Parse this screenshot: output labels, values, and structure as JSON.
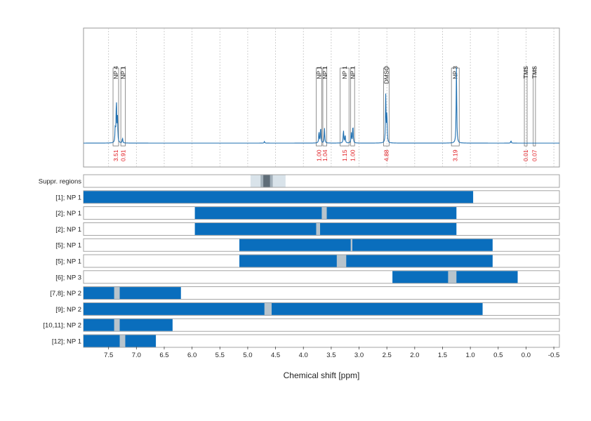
{
  "chart_data": {
    "type": "nmr-spectrum-with-region-bars",
    "xlabel": "Chemical shift [ppm]",
    "xlim": [
      7.95,
      -0.6
    ],
    "x_reversed": true,
    "x_ticks": [
      7.5,
      7.0,
      6.5,
      6.0,
      5.5,
      5.0,
      4.5,
      4.0,
      3.5,
      3.0,
      2.5,
      2.0,
      1.5,
      1.0,
      0.5,
      0.0,
      -0.5
    ],
    "x_tick_labels": [
      "7.5",
      "7.0",
      "6.5",
      "6.0",
      "5.5",
      "5.0",
      "4.5",
      "4.0",
      "3.5",
      "3.0",
      "2.5",
      "2.0",
      "1.5",
      "1.0",
      "0.5",
      "0.0",
      "-0.5"
    ],
    "grid": "vertical dotted",
    "spectrum": {
      "color": "#1f6fb0",
      "baseline_ppm_range": [
        7.95,
        -0.6
      ],
      "peaks": [
        {
          "ppm": 7.36,
          "height": 0.52
        },
        {
          "ppm": 7.34,
          "height": 0.3
        },
        {
          "ppm": 7.38,
          "height": 0.18
        },
        {
          "ppm": 7.25,
          "height": 0.06
        },
        {
          "ppm": 3.72,
          "height": 0.14
        },
        {
          "ppm": 3.69,
          "height": 0.2
        },
        {
          "ppm": 3.62,
          "height": 0.18
        },
        {
          "ppm": 3.28,
          "height": 0.16
        },
        {
          "ppm": 3.25,
          "height": 0.1
        },
        {
          "ppm": 3.14,
          "height": 0.14
        },
        {
          "ppm": 3.11,
          "height": 0.22
        },
        {
          "ppm": 2.52,
          "height": 0.58
        },
        {
          "ppm": 2.5,
          "height": 0.36
        },
        {
          "ppm": 1.25,
          "height": 0.92
        },
        {
          "ppm": 4.7,
          "height": 0.02
        },
        {
          "ppm": 0.27,
          "height": 0.03
        }
      ]
    },
    "integration_regions": [
      {
        "label": "NP 4",
        "from": 7.42,
        "to": 7.32,
        "integral": "3.51"
      },
      {
        "label": "NP 1",
        "from": 7.28,
        "to": 7.2,
        "integral": "0.91"
      },
      {
        "label": "NP 1",
        "from": 3.77,
        "to": 3.67,
        "integral": "1.00"
      },
      {
        "label": "NP 1",
        "from": 3.65,
        "to": 3.58,
        "integral": "1.04"
      },
      {
        "label": "NP 1",
        "from": 3.34,
        "to": 3.18,
        "integral": "1.15"
      },
      {
        "label": "NP 1",
        "from": 3.15,
        "to": 3.08,
        "integral": "1.00"
      },
      {
        "label": "DMSO",
        "from": 2.56,
        "to": 2.46,
        "integral": "4.88"
      },
      {
        "label": "NP 3",
        "from": 1.34,
        "to": 1.2,
        "integral": "3.19"
      },
      {
        "label": "TMS",
        "from": 0.03,
        "to": -0.02,
        "integral": "0.01"
      },
      {
        "label": "TMS",
        "from": -0.13,
        "to": -0.17,
        "integral": "0.07"
      }
    ],
    "suppression_row": {
      "label": "Suppr. regions",
      "regions": [
        {
          "from": 4.95,
          "to": 4.32,
          "shade": "light"
        },
        {
          "from": 4.77,
          "to": 4.55,
          "shade": "mid"
        },
        {
          "from": 4.72,
          "to": 4.6,
          "shade": "dark"
        }
      ]
    },
    "rows": [
      {
        "label": "[1]; NP 1",
        "bar": [
          7.95,
          0.95
        ],
        "gaps": []
      },
      {
        "label": "[2]; NP 1",
        "bar": [
          5.95,
          1.25
        ],
        "gaps": [
          [
            3.67,
            3.58
          ]
        ]
      },
      {
        "label": "[2]; NP 1",
        "bar": [
          5.95,
          1.25
        ],
        "gaps": [
          [
            3.77,
            3.7
          ]
        ]
      },
      {
        "label": "[5]; NP 1",
        "bar": [
          5.15,
          0.6
        ],
        "gaps": [
          [
            3.15,
            3.12
          ]
        ]
      },
      {
        "label": "[5]; NP 1",
        "bar": [
          5.15,
          0.6
        ],
        "gaps": [
          [
            3.4,
            3.23
          ]
        ]
      },
      {
        "label": "[6]; NP 3",
        "bar": [
          2.4,
          0.15
        ],
        "gaps": [
          [
            1.4,
            1.25
          ]
        ]
      },
      {
        "label": "[7,8]; NP 2",
        "bar": [
          7.95,
          6.2
        ],
        "gaps": [
          [
            7.4,
            7.3
          ]
        ]
      },
      {
        "label": "[9]; NP 2",
        "bar": [
          7.95,
          0.78
        ],
        "gaps": [
          [
            4.7,
            4.57
          ]
        ]
      },
      {
        "label": "[10,11]; NP 2",
        "bar": [
          7.95,
          6.35
        ],
        "gaps": [
          [
            7.4,
            7.3
          ]
        ]
      },
      {
        "label": "[12]; NP 1",
        "bar": [
          7.95,
          6.65
        ],
        "gaps": [
          [
            7.3,
            7.2
          ]
        ]
      }
    ],
    "colors": {
      "bar": "#0a6ebd",
      "gap": "#b8c4cc",
      "integral_text": "#e0151b",
      "spectrum": "#1f6fb0",
      "suppr_light": "#d9e3ea",
      "suppr_mid": "#a3b1bb",
      "suppr_dark": "#5f6d78"
    }
  }
}
